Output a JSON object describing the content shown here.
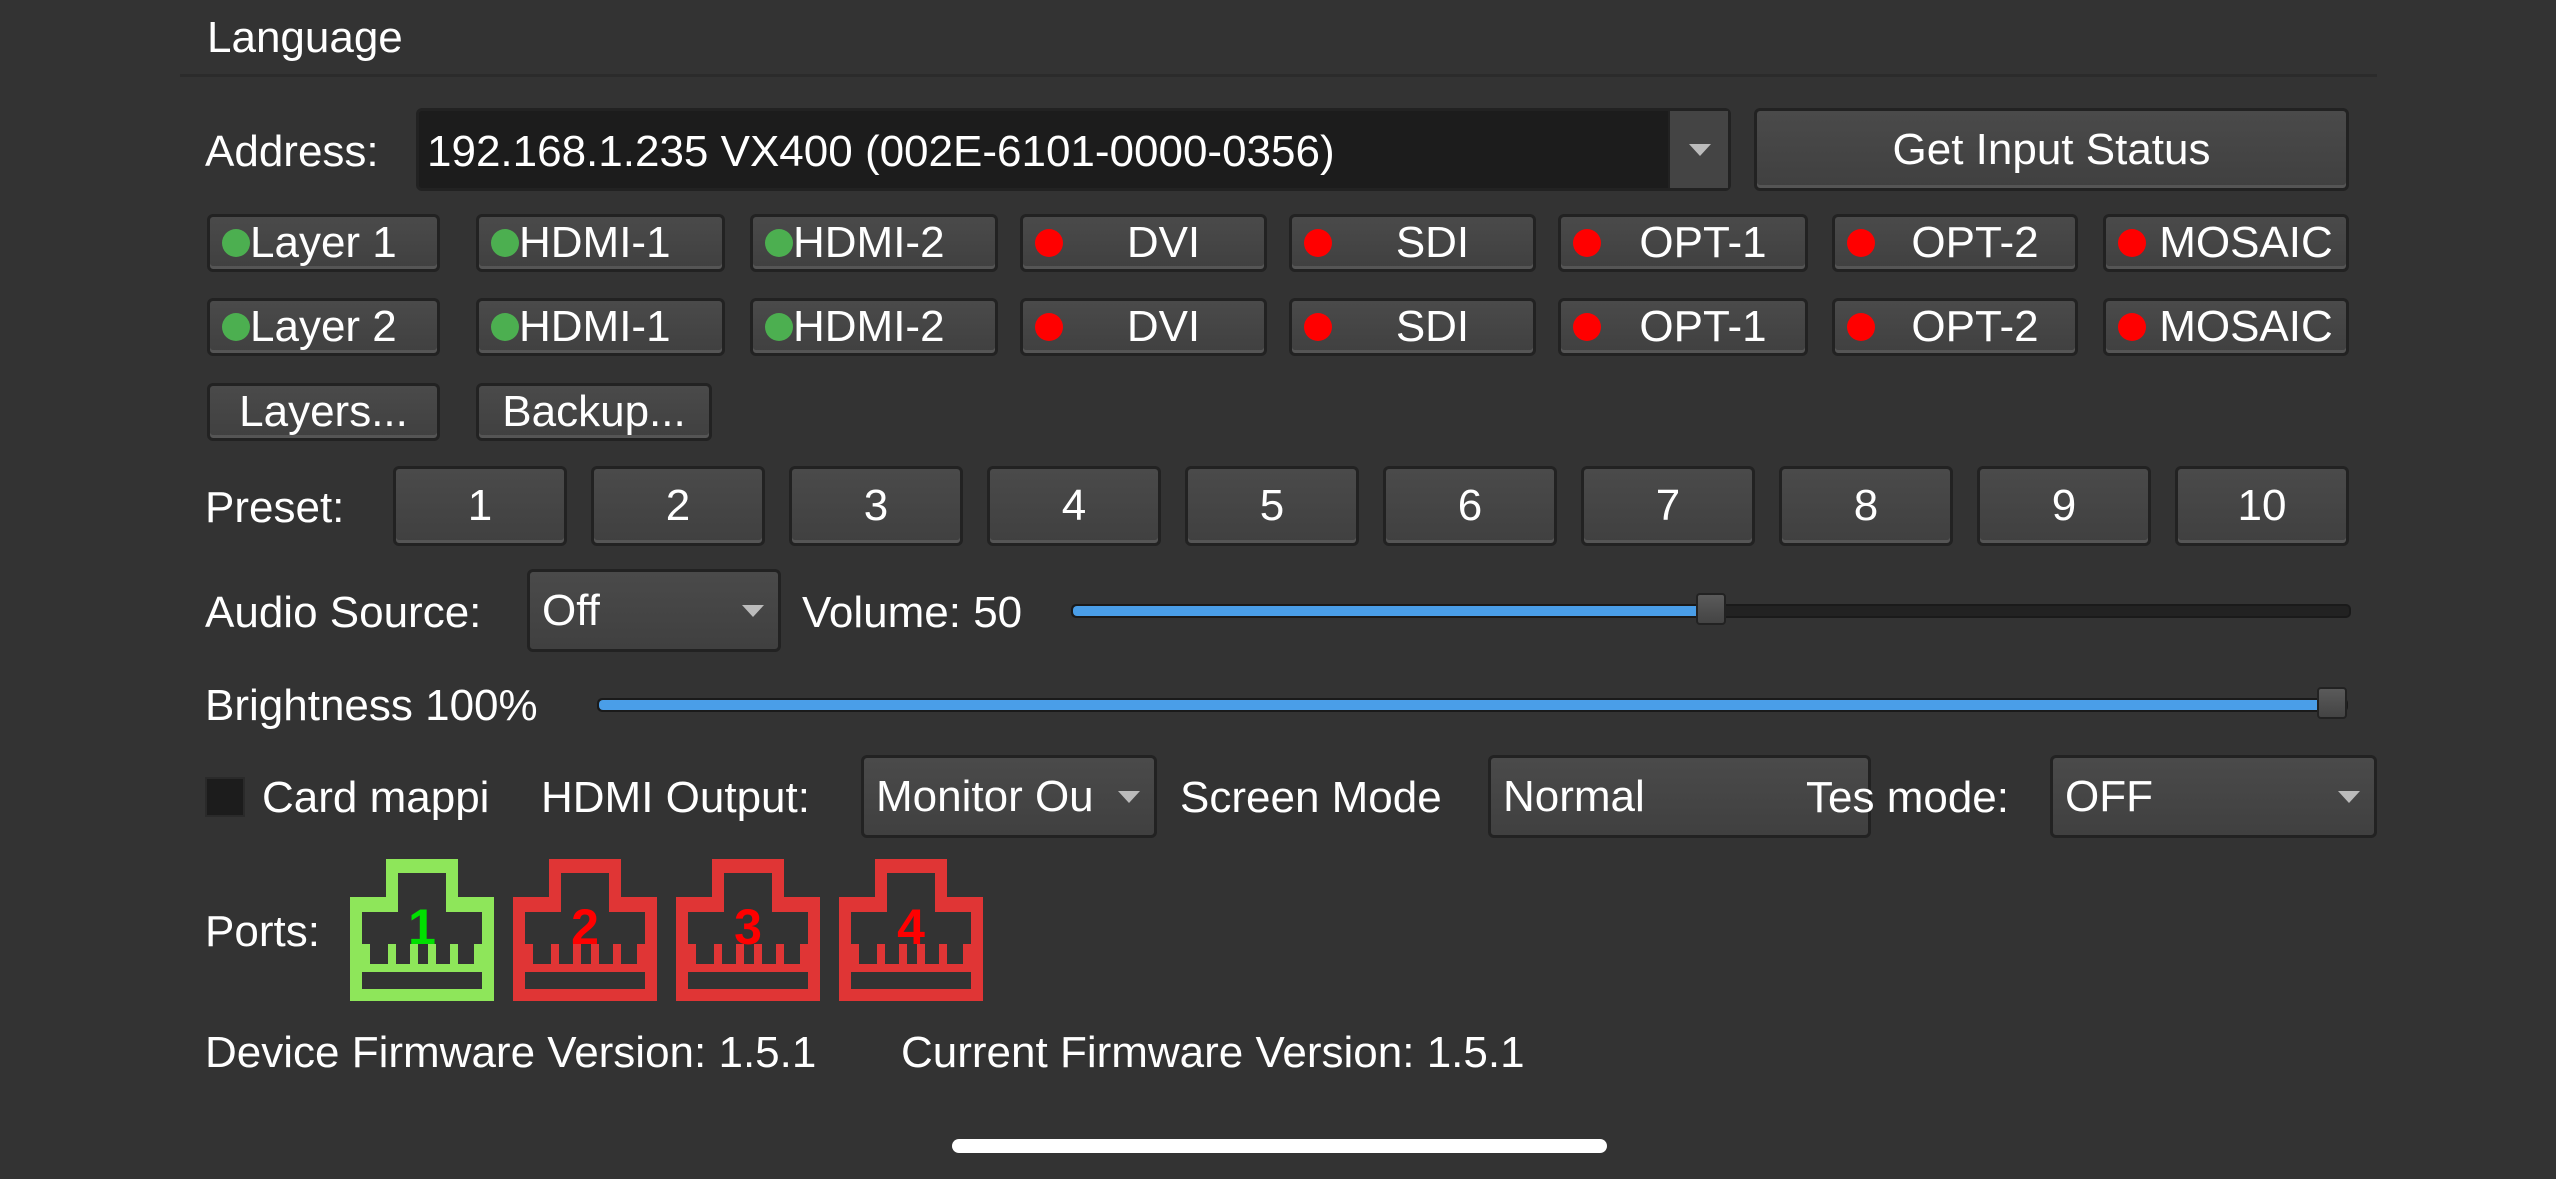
{
  "header": {
    "language_label": "Language"
  },
  "address": {
    "label": "Address:",
    "value": "192.168.1.235 VX400 (002E-6101-0000-0356)",
    "get_status_label": "Get Input Status"
  },
  "layers": [
    {
      "name": "Layer 1",
      "status": "green",
      "sources": [
        {
          "label": "HDMI-1",
          "status": "green"
        },
        {
          "label": "HDMI-2",
          "status": "green"
        },
        {
          "label": "DVI",
          "status": "red"
        },
        {
          "label": "SDI",
          "status": "red"
        },
        {
          "label": "OPT-1",
          "status": "red"
        },
        {
          "label": "OPT-2",
          "status": "red"
        },
        {
          "label": "MOSAIC",
          "status": "red"
        }
      ]
    },
    {
      "name": "Layer 2",
      "status": "green",
      "sources": [
        {
          "label": "HDMI-1",
          "status": "green"
        },
        {
          "label": "HDMI-2",
          "status": "green"
        },
        {
          "label": "DVI",
          "status": "red"
        },
        {
          "label": "SDI",
          "status": "red"
        },
        {
          "label": "OPT-1",
          "status": "red"
        },
        {
          "label": "OPT-2",
          "status": "red"
        },
        {
          "label": "MOSAIC",
          "status": "red"
        }
      ]
    }
  ],
  "actions": {
    "layers_label": "Layers...",
    "backup_label": "Backup..."
  },
  "preset": {
    "label": "Preset:",
    "buttons": [
      "1",
      "2",
      "3",
      "4",
      "5",
      "6",
      "7",
      "8",
      "9",
      "10"
    ]
  },
  "audio": {
    "label": "Audio Source:",
    "value": "Off",
    "volume_label": "Volume: 50",
    "volume": 50
  },
  "brightness": {
    "label": "Brightness 100%",
    "value": 100
  },
  "settings": {
    "card_mapping_label": "Card mappi",
    "card_mapping_checked": false,
    "hdmi_output_label": "HDMI Output:",
    "hdmi_output_value": "Monitor Ou",
    "screen_mode_label": "Screen Mode",
    "screen_mode_value": "Normal",
    "test_mode_label": "Tes mode:",
    "test_mode_value": "OFF"
  },
  "ports": {
    "label": "Ports:",
    "items": [
      {
        "number": "1",
        "status": "connected"
      },
      {
        "number": "2",
        "status": "disconnected"
      },
      {
        "number": "3",
        "status": "disconnected"
      },
      {
        "number": "4",
        "status": "disconnected"
      }
    ]
  },
  "firmware": {
    "device_label": "Device Firmware Version: 1.5.1",
    "current_label": "Current Firmware Version: 1.5.1"
  },
  "colors": {
    "green_dot": "#4caf50",
    "red_dot": "#ff0000",
    "port_ok": "#8ee65a",
    "port_bad": "#e03535",
    "port_ok_text": "#00e000",
    "port_bad_text": "#ff0000",
    "slider": "#4a9ee8"
  }
}
